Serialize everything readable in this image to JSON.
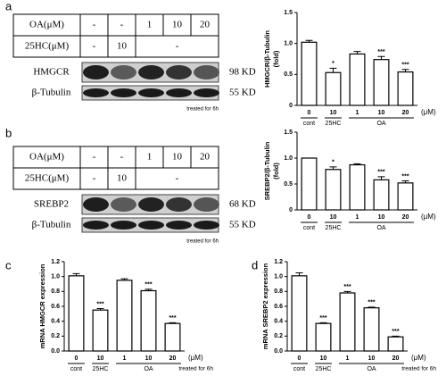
{
  "panel_labels": [
    "a",
    "b",
    "c",
    "d"
  ],
  "blots": [
    {
      "table": {
        "rows": [
          {
            "label": "OA(μM)",
            "cells": [
              "-",
              "-",
              "1",
              "10",
              "20"
            ]
          },
          {
            "label": "25HC(μM)",
            "cells": [
              "-",
              "10",
              "-"
            ]
          }
        ]
      },
      "bands": [
        {
          "label": "HMGCR",
          "size": "98 KD"
        },
        {
          "label": "β-Tubulin",
          "size": "55 KD"
        }
      ],
      "note": "treated for 6h"
    },
    {
      "table": {
        "rows": [
          {
            "label": "OA(μM)",
            "cells": [
              "-",
              "-",
              "1",
              "10",
              "20"
            ]
          },
          {
            "label": "25HC(μM)",
            "cells": [
              "-",
              "10",
              "-"
            ]
          }
        ]
      },
      "bands": [
        {
          "label": "SREBP2",
          "size": "68 KD"
        },
        {
          "label": "β-Tubulin",
          "size": "55 KD"
        }
      ],
      "note": "treated for 6h"
    }
  ],
  "chart_data": [
    {
      "type": "bar",
      "y_label": [
        "HMGCR/β-Tubulin",
        "(fold)"
      ],
      "categories": [
        "0",
        "10",
        "1",
        "10",
        "20"
      ],
      "values": [
        1.02,
        0.53,
        0.83,
        0.74,
        0.54
      ],
      "errors": [
        0.03,
        0.07,
        0.04,
        0.05,
        0.04
      ],
      "annotations": [
        null,
        "*",
        null,
        "***",
        "***"
      ],
      "groups": [
        "cont",
        "25HC",
        "OA"
      ],
      "x_unit": "(μM)",
      "color": "#ffffff",
      "ylim": [
        0,
        1.5
      ],
      "yticks": [
        0,
        0.5,
        {
          "value": 1,
          "label": "1.0"
        },
        1.5
      ]
    },
    {
      "type": "bar",
      "y_label": [
        "SREBP2/β-Tubulin",
        "(fold)"
      ],
      "categories": [
        "0",
        "10",
        "1",
        "10",
        "20"
      ],
      "values": [
        1.0,
        0.78,
        0.87,
        0.58,
        0.52
      ],
      "errors": [
        0,
        0.05,
        0.02,
        0.06,
        0.04
      ],
      "annotations": [
        null,
        "*",
        null,
        "***",
        "***"
      ],
      "groups": [
        "cont",
        "25HC",
        "OA"
      ],
      "x_unit": "(μM)",
      "color": "#ffffff",
      "ylim": [
        0,
        1.5
      ],
      "yticks": [
        0,
        0.5,
        {
          "value": 1,
          "label": "1.0"
        },
        1.5
      ]
    },
    {
      "type": "bar",
      "y_label": [
        "mRNA HMGCR expression"
      ],
      "categories": [
        "0",
        "10",
        "1",
        "10",
        "20"
      ],
      "values": [
        1.01,
        0.55,
        0.95,
        0.81,
        0.37
      ],
      "errors": [
        0.03,
        0.02,
        0.02,
        0.02,
        0.01
      ],
      "annotations": [
        null,
        "***",
        null,
        "***",
        "***"
      ],
      "groups": [
        "cont",
        "25HC",
        "OA"
      ],
      "x_unit": "(μM)",
      "note": "treated for 6h",
      "color": "#ffffff",
      "ylim": [
        0,
        1.2
      ],
      "yticks": [
        {
          "value": 0,
          "label": "0.0"
        },
        0.2,
        0.4,
        0.6,
        0.8,
        {
          "value": 1,
          "label": "1.0"
        },
        1.2
      ]
    },
    {
      "type": "bar",
      "y_label": [
        "mRNA SREBP2 expression"
      ],
      "categories": [
        "0",
        "10",
        "1",
        "10",
        "20"
      ],
      "values": [
        1.01,
        0.37,
        0.78,
        0.58,
        0.19
      ],
      "errors": [
        0.04,
        0.01,
        0.02,
        0.01,
        0.01
      ],
      "annotations": [
        null,
        "***",
        "***",
        "***",
        "***"
      ],
      "groups": [
        "cont",
        "25HC",
        "OA"
      ],
      "x_unit": "(μM)",
      "note": "treated for 6h",
      "color": "#ffffff",
      "ylim": [
        0,
        1.2
      ],
      "yticks": [
        {
          "value": 0,
          "label": "0.0"
        },
        0.2,
        0.4,
        0.6,
        0.8,
        {
          "value": 1,
          "label": "1.0"
        },
        1.2
      ]
    }
  ]
}
